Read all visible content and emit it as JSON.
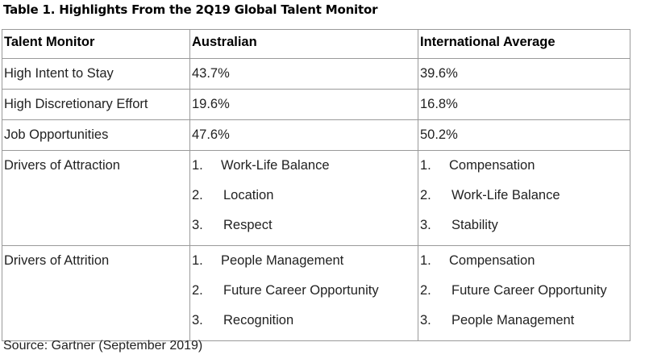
{
  "title": "Table 1. Highlights From the 2Q19 Global Talent Monitor",
  "columns": [
    "Talent Monitor",
    "Australian",
    "International Average"
  ],
  "rows": [
    {
      "label": "High Intent to Stay",
      "australian": "43.7%",
      "international": "39.6%"
    },
    {
      "label": "High Discretionary Effort",
      "australian": "19.6%",
      "international": "16.8%"
    },
    {
      "label": "Job Opportunities",
      "australian": "47.6%",
      "international": "50.2%"
    }
  ],
  "drivers": [
    {
      "label": "Drivers of Attraction",
      "australian": [
        {
          "num": "1.",
          "text": "Work-Life Balance"
        },
        {
          "num": "2.",
          "text": "Location"
        },
        {
          "num": "3.",
          "text": "Respect"
        }
      ],
      "international": [
        {
          "num": "1.",
          "text": "Compensation"
        },
        {
          "num": "2.",
          "text": "Work-Life Balance"
        },
        {
          "num": "3.",
          "text": "Stability"
        }
      ]
    },
    {
      "label": "Drivers of Attrition",
      "australian": [
        {
          "num": "1.",
          "text": "People Management"
        },
        {
          "num": "2.",
          "text": "Future Career Opportunity"
        },
        {
          "num": "3.",
          "text": "Recognition"
        }
      ],
      "international": [
        {
          "num": "1.",
          "text": "Compensation"
        },
        {
          "num": "2.",
          "text": "Future Career Opportunity"
        },
        {
          "num": "3.",
          "text": "People Management"
        }
      ]
    }
  ],
  "source": "Source: Gartner (September 2019)"
}
